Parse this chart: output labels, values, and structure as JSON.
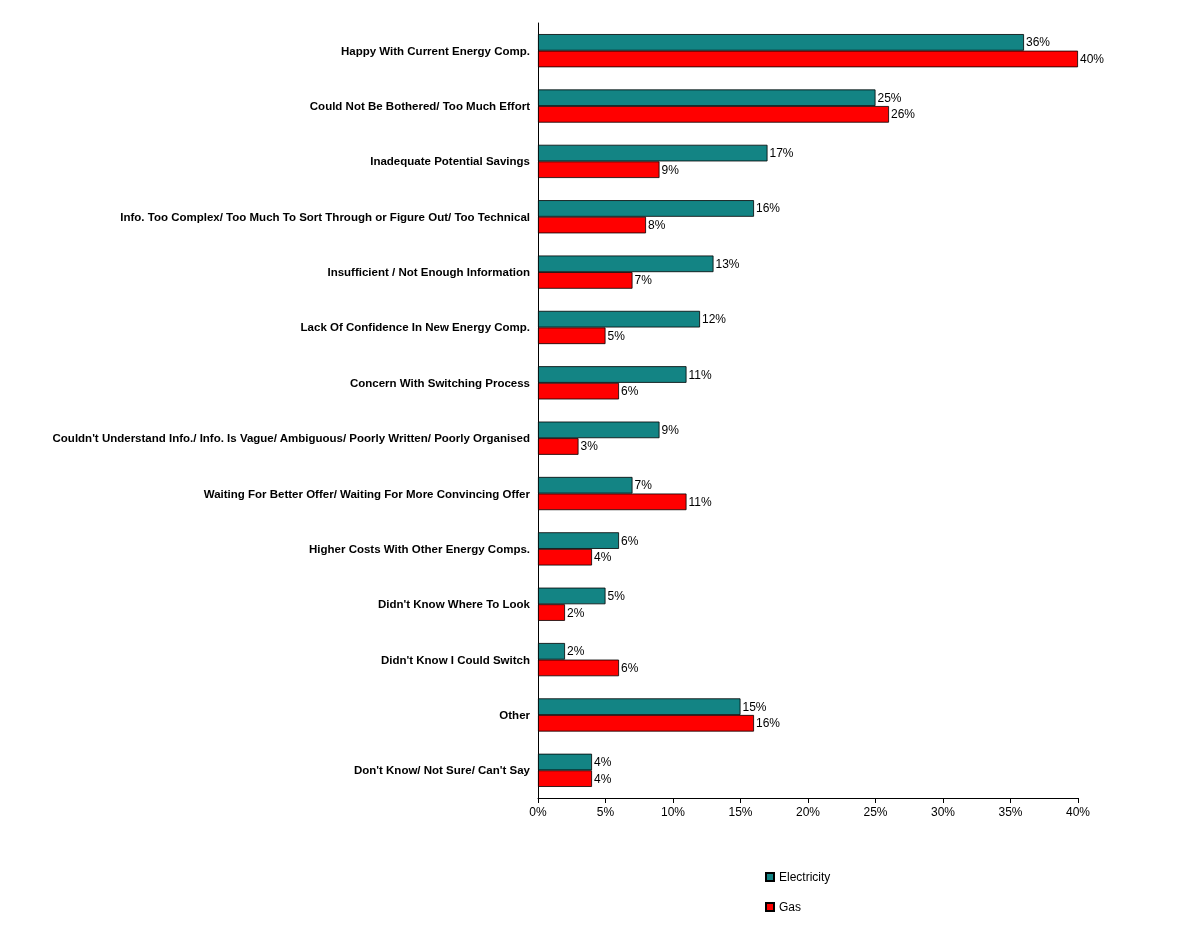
{
  "chart_data": {
    "type": "bar",
    "orientation": "horizontal",
    "categories": [
      "Happy With Current Energy Comp.",
      "Could Not Be Bothered/ Too Much Effort",
      "Inadequate Potential Savings",
      "Info. Too Complex/ Too Much To Sort Through or Figure Out/ Too Technical",
      "Insufficient / Not Enough Information",
      "Lack Of Confidence In New Energy Comp.",
      "Concern With Switching Process",
      "Couldn't Understand Info./ Info. Is Vague/ Ambiguous/ Poorly Written/ Poorly Organised",
      "Waiting For Better Offer/ Waiting For More Convincing Offer",
      "Higher Costs With Other Energy Comps.",
      "Didn't Know Where To Look",
      "Didn't Know I Could Switch",
      "Other",
      "Don't Know/ Not Sure/ Can't Say"
    ],
    "series": [
      {
        "name": "Electricity",
        "color": "#138484",
        "values": [
          36,
          25,
          17,
          16,
          13,
          12,
          11,
          9,
          7,
          6,
          5,
          2,
          15,
          4
        ],
        "value_labels": [
          "36%",
          "25%",
          "17%",
          "16%",
          "13%",
          "12%",
          "11%",
          "9%",
          "7%",
          "6%",
          "5%",
          "2%",
          "15%",
          "4%"
        ]
      },
      {
        "name": "Gas",
        "color": "#ff0000",
        "values": [
          40,
          26,
          9,
          8,
          7,
          5,
          6,
          3,
          11,
          4,
          2,
          6,
          16,
          4
        ],
        "value_labels": [
          "40%",
          "26%",
          "9%",
          "8%",
          "7%",
          "5%",
          "6%",
          "3%",
          "11%",
          "4%",
          "2%",
          "6%",
          "16%",
          "4%"
        ]
      }
    ],
    "xlim": [
      0,
      40
    ],
    "xticks": [
      {
        "value": 0,
        "label": "0%"
      },
      {
        "value": 5,
        "label": "5%"
      },
      {
        "value": 10,
        "label": "10%"
      },
      {
        "value": 15,
        "label": "15%"
      },
      {
        "value": 20,
        "label": "20%"
      },
      {
        "value": 25,
        "label": "25%"
      },
      {
        "value": 30,
        "label": "30%"
      },
      {
        "value": 35,
        "label": "35%"
      },
      {
        "value": 40,
        "label": "40%"
      }
    ],
    "legend": "bottom",
    "grid": false
  }
}
